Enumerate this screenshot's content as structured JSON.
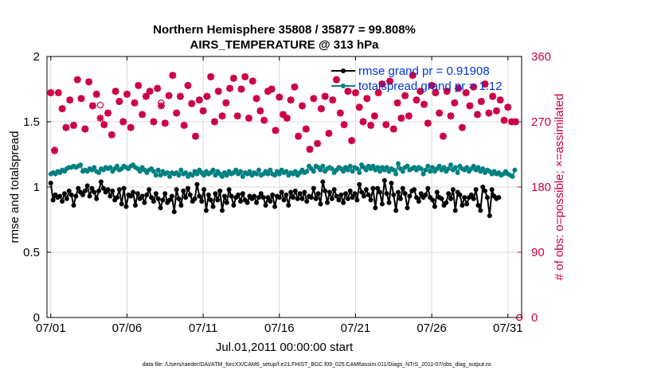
{
  "chart_data": {
    "type": "line",
    "title": "Northern Hemisphere 35808 / 35877 = 99.808%",
    "subtitle": "AIRS_TEMPERATURE @ 313 hPa",
    "xlabel": "Jul.01,2011 00:00:00 start",
    "ylabel": "rmse and totalspread",
    "ylabel_right": "# of obs: o=possible; ×=assimilated",
    "footnote": "data file: /Users/raeder/DAI/ATM_forcXX/CAM6_setup/f.e21.FHIST_BGC.f09_025.CAM6assim.011/Diags_NTrS_2011-07/obs_diag_output.nc",
    "xlim": [
      0.75,
      31.9
    ],
    "ylim": [
      0,
      2
    ],
    "ylim_right": [
      0,
      360
    ],
    "x_ticks": [
      1,
      6,
      11,
      16,
      21,
      26,
      31
    ],
    "x_tick_labels": [
      "07/01",
      "07/06",
      "07/11",
      "07/16",
      "07/21",
      "07/26",
      "07/31"
    ],
    "y_ticks": [
      0,
      0.5,
      1,
      1.5,
      2
    ],
    "y_tick_labels": [
      "0",
      "0.5",
      "1",
      "1.5",
      "2"
    ],
    "y_ticks_right": [
      0,
      90,
      180,
      270,
      360
    ],
    "y_tick_labels_right": [
      "0",
      "90",
      "180",
      "270",
      "360"
    ],
    "grid": true,
    "legend_position": "top-right",
    "legend": [
      "rmse grand pr = 0.91908",
      "totalspread grand pr = 1.12"
    ],
    "colors": {
      "rmse": "#000000",
      "spread": "#008080",
      "obs": "#cc0044",
      "legend_text": "#0033dd",
      "grid": "#d9d9d9"
    },
    "series": [
      {
        "name": "rmse",
        "values": [
          1.03,
          0.9,
          0.94,
          0.92,
          0.93,
          0.89,
          0.95,
          0.91,
          0.97,
          0.94,
          0.86,
          0.93,
          0.99,
          0.96,
          0.94,
          0.97,
          1.01,
          0.93,
          0.99,
          0.96,
          0.91,
          0.97,
          1.04,
          0.99,
          0.96,
          0.98,
          0.93,
          0.97,
          0.9,
          0.92,
          0.98,
          0.87,
          0.99,
          0.85,
          0.94,
          0.93,
          0.96,
          0.86,
          0.95,
          0.91,
          0.93,
          0.88,
          0.94,
          0.98,
          0.92,
          0.89,
          0.95,
          0.91,
          0.84,
          0.9,
          0.95,
          0.88,
          0.9,
          0.93,
          0.81,
          0.98,
          0.91,
          0.86,
          0.97,
          0.92,
          0.99,
          0.94,
          0.89,
          0.91,
          1.02,
          0.93,
          0.89,
          0.98,
          0.82,
          0.94,
          0.9,
          0.85,
          0.95,
          0.9,
          0.97,
          0.82,
          0.93,
          0.88,
          0.98,
          0.93,
          0.86,
          0.92,
          0.94,
          0.89,
          0.95,
          0.9,
          0.88,
          0.93,
          0.91,
          0.93,
          0.88,
          0.92,
          0.95,
          0.92,
          0.86,
          0.92,
          0.89,
          0.94,
          0.85,
          0.93,
          0.92,
          0.96,
          0.9,
          0.94,
          0.86,
          0.96,
          0.92,
          0.97,
          0.91,
          0.95,
          0.91,
          0.96,
          0.89,
          0.93,
          0.92,
          0.99,
          0.91,
          0.95,
          0.87,
          1.04,
          0.97,
          0.88,
          0.96,
          0.91,
          0.98,
          0.93,
          0.9,
          0.94,
          0.88,
          0.95,
          0.91,
          0.97,
          0.92,
          0.95,
          0.9,
          1.02,
          0.96,
          0.93,
          0.98,
          0.94,
          0.9,
          0.99,
          0.84,
          0.99,
          0.96,
          0.87,
          1.05,
          0.95,
          0.88,
          1.03,
          0.94,
          0.82,
          0.96,
          0.91,
          0.99,
          0.95,
          0.84,
          0.93,
          0.97,
          0.98,
          0.92,
          0.89,
          0.95,
          0.92,
          0.94,
          0.99,
          0.92,
          0.9,
          0.85,
          0.96,
          0.92,
          0.91,
          0.86,
          0.88,
          0.95,
          0.91,
          0.98,
          0.82,
          0.96,
          0.94,
          0.86,
          0.92,
          0.87,
          0.92,
          0.94,
          0.91,
          0.98,
          0.86,
          0.82,
          1.0,
          0.97,
          0.92,
          0.78,
          0.98,
          0.93,
          0.91,
          0.92
        ]
      },
      {
        "name": "totalspread",
        "values": [
          1.1,
          1.11,
          1.1,
          1.12,
          1.11,
          1.13,
          1.12,
          1.14,
          1.15,
          1.15,
          1.16,
          1.15,
          1.16,
          1.17,
          1.12,
          1.13,
          1.12,
          1.14,
          1.13,
          1.15,
          1.12,
          1.11,
          1.14,
          1.13,
          1.15,
          1.14,
          1.15,
          1.12,
          1.14,
          1.16,
          1.13,
          1.14,
          1.16,
          1.15,
          1.14,
          1.16,
          1.17,
          1.15,
          1.14,
          1.12,
          1.15,
          1.13,
          1.11,
          1.13,
          1.14,
          1.12,
          1.09,
          1.13,
          1.09,
          1.12,
          1.1,
          1.11,
          1.08,
          1.11,
          1.1,
          1.11,
          1.09,
          1.13,
          1.1,
          1.11,
          1.08,
          1.1,
          1.09,
          1.12,
          1.1,
          1.13,
          1.11,
          1.09,
          1.12,
          1.1,
          1.11,
          1.13,
          1.09,
          1.12,
          1.1,
          1.08,
          1.11,
          1.09,
          1.12,
          1.1,
          1.11,
          1.13,
          1.1,
          1.12,
          1.08,
          1.11,
          1.1,
          1.12,
          1.09,
          1.11,
          1.1,
          1.13,
          1.09,
          1.1,
          1.12,
          1.1,
          1.13,
          1.1,
          1.09,
          1.12,
          1.1,
          1.13,
          1.11,
          1.12,
          1.09,
          1.11,
          1.1,
          1.12,
          1.09,
          1.11,
          1.13,
          1.11,
          1.12,
          1.16,
          1.14,
          1.12,
          1.16,
          1.15,
          1.13,
          1.16,
          1.12,
          1.14,
          1.15,
          1.14,
          1.11,
          1.13,
          1.15,
          1.14,
          1.12,
          1.15,
          1.13,
          1.16,
          1.12,
          1.15,
          1.14,
          1.11,
          1.17,
          1.15,
          1.13,
          1.16,
          1.14,
          1.16,
          1.13,
          1.15,
          1.12,
          1.15,
          1.13,
          1.15,
          1.12,
          1.14,
          1.13,
          1.1,
          1.18,
          1.14,
          1.12,
          1.15,
          1.16,
          1.13,
          1.14,
          1.15,
          1.13,
          1.15,
          1.14,
          1.1,
          1.13,
          1.16,
          1.12,
          1.15,
          1.12,
          1.14,
          1.16,
          1.13,
          1.15,
          1.12,
          1.14,
          1.17,
          1.13,
          1.15,
          1.11,
          1.16,
          1.14,
          1.13,
          1.15,
          1.12,
          1.14,
          1.16,
          1.13,
          1.15,
          1.12,
          1.14,
          1.11,
          1.13,
          1.12,
          1.1,
          1.12,
          1.1,
          1.11,
          1.09,
          1.1,
          1.12,
          1.1,
          1.09,
          1.08,
          1.13
        ]
      },
      {
        "name": "obs_assimilated",
        "x": [
          1.0,
          1.25,
          1.5,
          1.75,
          2.0,
          2.25,
          2.5,
          2.75,
          3.0,
          3.25,
          3.5,
          3.75,
          4.0,
          4.25,
          4.5,
          4.75,
          5.0,
          5.25,
          5.5,
          5.75,
          6.0,
          6.25,
          6.5,
          6.75,
          7.0,
          7.25,
          7.5,
          7.75,
          8.0,
          8.25,
          8.5,
          8.75,
          9.0,
          9.25,
          9.5,
          9.75,
          10.0,
          10.25,
          10.5,
          10.75,
          11.0,
          11.25,
          11.5,
          11.75,
          12.0,
          12.25,
          12.5,
          12.75,
          13.0,
          13.25,
          13.5,
          13.75,
          14.0,
          14.25,
          14.5,
          14.75,
          15.0,
          15.25,
          15.5,
          15.75,
          16.0,
          16.25,
          16.5,
          16.75,
          17.0,
          17.25,
          17.5,
          17.75,
          18.0,
          18.25,
          18.5,
          18.75,
          19.0,
          19.25,
          19.5,
          19.75,
          20.0,
          20.25,
          20.5,
          20.75,
          21.0,
          21.25,
          21.5,
          21.75,
          22.0,
          22.25,
          22.5,
          22.75,
          23.0,
          23.25,
          23.5,
          23.75,
          24.0,
          24.25,
          24.5,
          24.75,
          25.0,
          25.25,
          25.5,
          25.75,
          26.0,
          26.25,
          26.5,
          26.75,
          27.0,
          27.25,
          27.5,
          27.75,
          28.0,
          28.25,
          28.5,
          28.75,
          29.0,
          29.25,
          29.5,
          29.75,
          30.0,
          30.25,
          30.5,
          30.75,
          31.0,
          31.25,
          31.5
        ],
        "values": [
          310,
          230,
          310,
          288,
          262,
          300,
          265,
          328,
          302,
          260,
          325,
          292,
          308,
          275,
          266,
          282,
          252,
          312,
          298,
          270,
          308,
          262,
          296,
          320,
          280,
          305,
          312,
          270,
          316,
          292,
          268,
          306,
          334,
          282,
          305,
          265,
          320,
          295,
          250,
          300,
          285,
          305,
          332,
          270,
          312,
          278,
          296,
          316,
          330,
          278,
          315,
          332,
          275,
          326,
          302,
          285,
          272,
          312,
          315,
          258,
          304,
          280,
          275,
          300,
          318,
          250,
          292,
          260,
          232,
          302,
          240,
          288,
          305,
          254,
          300,
          328,
          282,
          266,
          312,
          244,
          310,
          290,
          270,
          302,
          265,
          278,
          310,
          322,
          266,
          326,
          260,
          296,
          275,
          306,
          278,
          334,
          300,
          312,
          294,
          268,
          320,
          310,
          282,
          250,
          312,
          278,
          296,
          316,
          262,
          310,
          292,
          318,
          280,
          298,
          322,
          282,
          305,
          285,
          300,
          272,
          290,
          270,
          270
        ]
      },
      {
        "name": "obs_possible",
        "x": [
          1.0,
          1.25,
          1.5,
          1.75,
          2.0,
          2.25,
          2.5,
          2.75,
          3.0,
          3.25,
          3.5,
          3.75,
          4.0,
          4.25,
          4.5,
          4.75,
          5.0,
          5.25,
          5.5,
          5.75,
          6.0,
          6.25,
          6.5,
          6.75,
          7.0,
          7.25,
          7.5,
          7.75,
          8.0,
          8.25,
          8.5,
          8.75,
          9.0,
          9.25,
          9.5,
          9.75,
          10.0,
          10.25,
          10.5,
          10.75,
          11.0,
          11.25,
          11.5,
          11.75,
          12.0,
          12.25,
          12.5,
          12.75,
          13.0,
          13.25,
          13.5,
          13.75,
          14.0,
          14.25,
          14.5,
          14.75,
          15.0,
          15.25,
          15.5,
          15.75,
          16.0,
          16.25,
          16.5,
          16.75,
          17.0,
          17.25,
          17.5,
          17.75,
          18.0,
          18.25,
          18.5,
          18.75,
          19.0,
          19.25,
          19.5,
          19.75,
          20.0,
          20.25,
          20.5,
          20.75,
          21.0,
          21.25,
          21.5,
          21.75,
          22.0,
          22.25,
          22.5,
          22.75,
          23.0,
          23.25,
          23.5,
          23.75,
          24.0,
          24.25,
          24.5,
          24.75,
          25.0,
          25.25,
          25.5,
          25.75,
          26.0,
          26.25,
          26.5,
          26.75,
          27.0,
          27.25,
          27.5,
          27.75,
          28.0,
          28.25,
          28.5,
          28.75,
          29.0,
          29.25,
          29.5,
          29.75,
          30.0,
          30.25,
          30.5,
          30.75,
          31.0,
          31.25,
          31.5,
          31.75
        ],
        "values": [
          310,
          231,
          310,
          288,
          262,
          300,
          265,
          328,
          302,
          260,
          325,
          292,
          308,
          293,
          266,
          282,
          252,
          312,
          298,
          270,
          308,
          262,
          296,
          320,
          280,
          305,
          312,
          270,
          316,
          296,
          268,
          306,
          334,
          282,
          305,
          265,
          320,
          295,
          250,
          300,
          285,
          305,
          332,
          270,
          312,
          278,
          296,
          316,
          330,
          278,
          315,
          332,
          275,
          326,
          302,
          285,
          272,
          312,
          315,
          258,
          304,
          280,
          275,
          300,
          318,
          250,
          292,
          260,
          232,
          302,
          240,
          288,
          305,
          254,
          300,
          328,
          282,
          266,
          312,
          244,
          310,
          290,
          270,
          302,
          265,
          278,
          310,
          322,
          266,
          326,
          260,
          296,
          275,
          306,
          278,
          334,
          300,
          312,
          294,
          268,
          320,
          310,
          282,
          250,
          312,
          278,
          296,
          316,
          262,
          310,
          292,
          318,
          280,
          298,
          322,
          282,
          305,
          285,
          300,
          272,
          290,
          270,
          270,
          0
        ]
      }
    ]
  }
}
